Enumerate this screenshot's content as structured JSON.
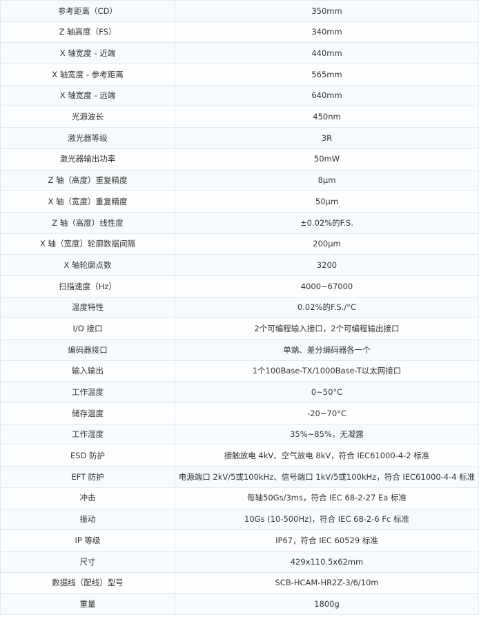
{
  "spec_table": {
    "rows": [
      {
        "label": "参考距离（CD）",
        "value": "350mm"
      },
      {
        "label": "Z 轴高度（FS）",
        "value": "340mm"
      },
      {
        "label": "X 轴宽度 - 近端",
        "value": "440mm"
      },
      {
        "label": "X 轴宽度 - 参考距离",
        "value": "565mm"
      },
      {
        "label": "X 轴宽度 - 远端",
        "value": "640mm"
      },
      {
        "label": "光源波长",
        "value": "450nm"
      },
      {
        "label": "激光器等级",
        "value": "3R"
      },
      {
        "label": "激光器输出功率",
        "value": "50mW"
      },
      {
        "label": "Z 轴（高度）重复精度",
        "value": "8μm"
      },
      {
        "label": "X 轴（宽度）重复精度",
        "value": "50μm"
      },
      {
        "label": "Z 轴（高度）线性度",
        "value": "±0.02%的F.S."
      },
      {
        "label": "X 轴（宽度）轮廓数据间隔",
        "value": "200μm"
      },
      {
        "label": "X 轴轮廓点数",
        "value": "3200"
      },
      {
        "label": "扫描速度（Hz）",
        "value": "4000~67000"
      },
      {
        "label": "温度特性",
        "value": "0.02%的F.S./°C"
      },
      {
        "label": "I/O 接口",
        "value": "2个可编程输入接口，2个可编程输出接口"
      },
      {
        "label": "编码器接口",
        "value": "单端、差分编码器各一个"
      },
      {
        "label": "输入输出",
        "value": "1个100Base-TX/1000Base-T以太网接口"
      },
      {
        "label": "工作温度",
        "value": "0~50°C"
      },
      {
        "label": "储存温度",
        "value": "-20~70°C"
      },
      {
        "label": "工作湿度",
        "value": "35%~85%，无凝露"
      },
      {
        "label": "ESD 防护",
        "value": "接触放电 4kV、空气放电 8kV，符合 IEC61000-4-2 标准"
      },
      {
        "label": "EFT 防护",
        "value": "电源端口 2kV/5或100kHz、信号端口 1kV/5或100kHz，符合 IEC61000-4-4 标准"
      },
      {
        "label": "冲击",
        "value": "每轴50Gs/3ms，符合 IEC 68-2-27 Ea 标准"
      },
      {
        "label": "振动",
        "value": "10Gs (10-500Hz)，符合 IEC 68-2-6 Fc 标准"
      },
      {
        "label": "IP 等级",
        "value": "IP67，符合 IEC 60529 标准"
      },
      {
        "label": "尺寸",
        "value": "429x110.5x62mm"
      },
      {
        "label": "数据线（配线）型号",
        "value": "SCB-HCAM-HR2Z-3/6/10m"
      },
      {
        "label": "重量",
        "value": "1800g"
      }
    ]
  }
}
